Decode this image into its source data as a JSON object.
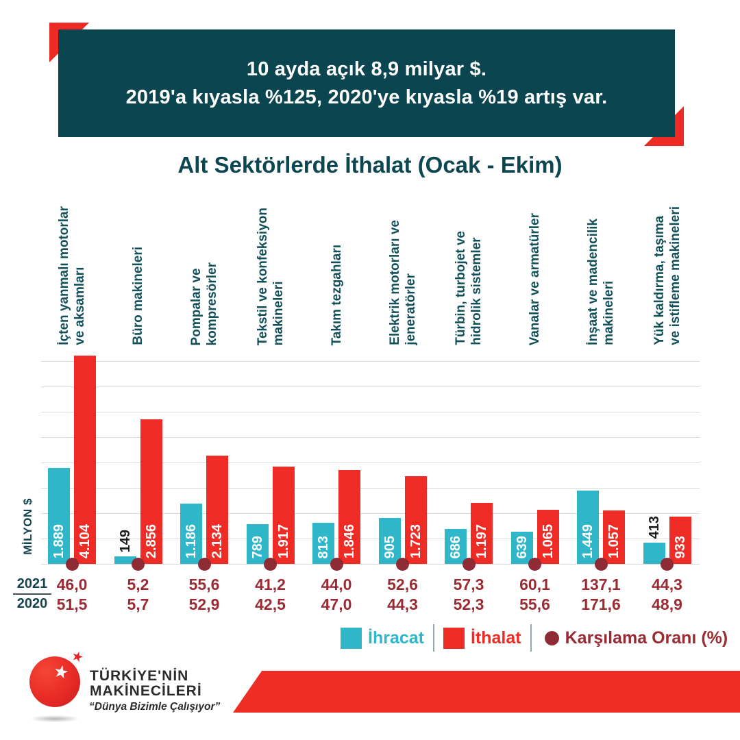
{
  "colors": {
    "teal": "#0B454F",
    "cyan": "#2FB7C9",
    "red": "#EE2B24",
    "maroon": "#8E2B34",
    "maroon_text": "#9B2B33",
    "grid": "#DADADA",
    "outside_label": "#1A1A1A"
  },
  "banner": {
    "line1": "10 ayda açık 8,9 milyar $.",
    "line2": "2019'a kıyasla %125, 2020'ye kıyasla %19 artış var."
  },
  "chart_data": {
    "type": "bar",
    "title": "Alt Sektörlerde İthalat (Ocak - Ekim)",
    "ylabel": "MİLYON $",
    "ylim": [
      0,
      4000
    ],
    "grid_step": 500,
    "grid": true,
    "legend_position": "bottom",
    "categories": [
      "İçten yanmalı motorlar\nve aksamları",
      "Büro makineleri",
      "Pompalar ve\nkompresörler",
      "Tekstil ve konfeksiyon\nmakineleri",
      "Takım tezgahları",
      "Elektrik motorları ve\njeneratörler",
      "Türbin, turbojet ve\nhidrolik sistemler",
      "Vanalar ve armatürler",
      "İnşaat ve madencilik\nmakineleri",
      "Yük kaldırma, taşıma\nve istifleme makineleri"
    ],
    "series": [
      {
        "name": "İhracat",
        "color_key": "cyan",
        "values": [
          1889,
          149,
          1186,
          789,
          813,
          905,
          686,
          639,
          1449,
          413
        ],
        "labels": [
          "1.889",
          "149",
          "1.186",
          "789",
          "813",
          "905",
          "686",
          "639",
          "1.449",
          "413"
        ]
      },
      {
        "name": "İthalat",
        "color_key": "red",
        "values": [
          4104,
          2856,
          2134,
          1917,
          1846,
          1723,
          1197,
          1065,
          1057,
          933
        ],
        "labels": [
          "4.104",
          "2.856",
          "2.134",
          "1.917",
          "1.846",
          "1.723",
          "1.197",
          "1.065",
          "1.057",
          "933"
        ]
      }
    ],
    "ratio": {
      "name": "Karşılama Oranı (%)",
      "rows": [
        {
          "year": "2021",
          "values": [
            "46,0",
            "5,2",
            "55,6",
            "41,2",
            "44,0",
            "52,6",
            "57,3",
            "60,1",
            "137,1",
            "44,3"
          ]
        },
        {
          "year": "2020",
          "values": [
            "51,5",
            "5,7",
            "52,9",
            "42,5",
            "47,0",
            "44,3",
            "52,3",
            "55,6",
            "171,6",
            "48,9"
          ]
        }
      ]
    }
  },
  "legend": {
    "ihracat": "İhracat",
    "ithalat": "İthalat",
    "ratio": "Karşılama Oranı (%)"
  },
  "logo": {
    "name_line1": "TÜRKİYE'NİN",
    "name_line2": "MAKİNECİLERİ",
    "slogan": "“Dünya Bizimle Çalışıyor”",
    "star_glyph": "★"
  }
}
